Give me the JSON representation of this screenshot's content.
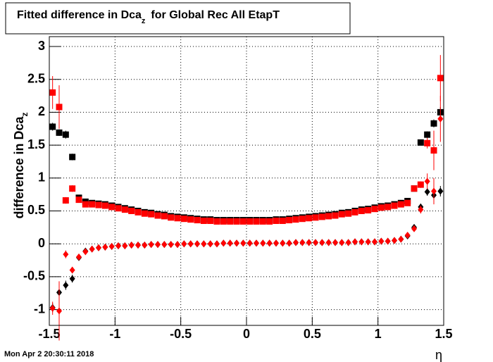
{
  "chart_data": {
    "type": "scatter",
    "title": {
      "main": "Fitted difference in Dca",
      "sub": "z",
      "rest": "for Global Rec All EtapT"
    },
    "y_label": {
      "main": "difference in Dca",
      "sub": "z"
    },
    "x_label": "η",
    "footer": "Mon Apr  2 20:30:11 2018",
    "xlim": [
      -1.5,
      1.5
    ],
    "xticks": [
      -1.5,
      -1,
      -0.5,
      0,
      0.5,
      1,
      1.5
    ],
    "ylim": [
      -1.24,
      3.15
    ],
    "yticks": [
      -1,
      -0.5,
      0,
      0.5,
      1,
      1.5,
      2,
      2.5,
      3
    ],
    "grid": true,
    "x": [
      -1.475,
      -1.425,
      -1.375,
      -1.325,
      -1.275,
      -1.225,
      -1.175,
      -1.125,
      -1.075,
      -1.025,
      -0.975,
      -0.925,
      -0.875,
      -0.825,
      -0.775,
      -0.725,
      -0.675,
      -0.625,
      -0.575,
      -0.525,
      -0.475,
      -0.425,
      -0.375,
      -0.325,
      -0.275,
      -0.225,
      -0.175,
      -0.125,
      -0.075,
      -0.025,
      0.025,
      0.075,
      0.125,
      0.175,
      0.225,
      0.275,
      0.325,
      0.375,
      0.425,
      0.475,
      0.525,
      0.575,
      0.625,
      0.675,
      0.725,
      0.775,
      0.825,
      0.875,
      0.925,
      0.975,
      1.025,
      1.075,
      1.125,
      1.175,
      1.225,
      1.275,
      1.325,
      1.375,
      1.425,
      1.475
    ],
    "series": [
      {
        "color": "#000000",
        "marker": "square",
        "values": [
          1.78,
          1.69,
          1.66,
          1.32,
          0.7,
          0.64,
          0.62,
          0.61,
          0.6,
          0.58,
          0.56,
          0.54,
          0.52,
          0.5,
          0.48,
          0.47,
          0.45,
          0.44,
          0.42,
          0.41,
          0.4,
          0.39,
          0.38,
          0.37,
          0.37,
          0.36,
          0.36,
          0.36,
          0.36,
          0.36,
          0.36,
          0.36,
          0.36,
          0.36,
          0.37,
          0.37,
          0.38,
          0.39,
          0.4,
          0.41,
          0.42,
          0.43,
          0.44,
          0.45,
          0.47,
          0.48,
          0.5,
          0.52,
          0.53,
          0.55,
          0.57,
          0.58,
          0.6,
          0.62,
          0.65,
          0.84,
          1.54,
          1.66,
          1.83,
          2.0
        ],
        "errors": [
          0.06,
          0.05,
          0.06,
          0.05,
          0.03,
          0.02,
          0.01,
          0.01,
          0.01,
          0.01,
          0.01,
          0.01,
          0.01,
          0.01,
          0.01,
          0.01,
          0.01,
          0.01,
          0.01,
          0.01,
          0.01,
          0.01,
          0.01,
          0.01,
          0.01,
          0.01,
          0.01,
          0.01,
          0.01,
          0.01,
          0.01,
          0.01,
          0.01,
          0.01,
          0.01,
          0.01,
          0.01,
          0.01,
          0.01,
          0.01,
          0.01,
          0.01,
          0.01,
          0.01,
          0.01,
          0.01,
          0.01,
          0.01,
          0.01,
          0.01,
          0.01,
          0.01,
          0.01,
          0.01,
          0.02,
          0.03,
          0.04,
          0.05,
          0.06,
          0.08
        ]
      },
      {
        "color": "#ff0000",
        "marker": "square",
        "values": [
          2.3,
          2.08,
          0.66,
          0.84,
          0.67,
          0.6,
          0.6,
          0.59,
          0.58,
          0.56,
          0.54,
          0.52,
          0.5,
          0.48,
          0.46,
          0.45,
          0.43,
          0.42,
          0.4,
          0.39,
          0.38,
          0.37,
          0.36,
          0.35,
          0.35,
          0.34,
          0.34,
          0.34,
          0.34,
          0.34,
          0.34,
          0.34,
          0.34,
          0.34,
          0.35,
          0.35,
          0.36,
          0.37,
          0.38,
          0.39,
          0.4,
          0.41,
          0.42,
          0.43,
          0.45,
          0.46,
          0.48,
          0.5,
          0.51,
          0.53,
          0.55,
          0.56,
          0.58,
          0.6,
          0.62,
          0.84,
          0.9,
          1.53,
          1.42,
          2.52
        ],
        "errors": [
          0.25,
          0.33,
          0.05,
          0.05,
          0.03,
          0.02,
          0.01,
          0.01,
          0.01,
          0.01,
          0.01,
          0.01,
          0.01,
          0.01,
          0.01,
          0.01,
          0.01,
          0.01,
          0.01,
          0.01,
          0.01,
          0.01,
          0.01,
          0.01,
          0.01,
          0.01,
          0.01,
          0.01,
          0.01,
          0.01,
          0.01,
          0.01,
          0.01,
          0.01,
          0.01,
          0.01,
          0.01,
          0.01,
          0.01,
          0.01,
          0.01,
          0.01,
          0.01,
          0.01,
          0.01,
          0.01,
          0.01,
          0.01,
          0.01,
          0.01,
          0.01,
          0.01,
          0.01,
          0.01,
          0.02,
          0.04,
          0.05,
          0.08,
          0.3,
          0.35
        ]
      },
      {
        "color": "#000000",
        "marker": "diamond",
        "values": [
          -0.97,
          -0.74,
          -0.63,
          -0.53,
          -0.21,
          -0.11,
          -0.08,
          -0.06,
          -0.05,
          -0.04,
          -0.03,
          -0.03,
          -0.02,
          -0.02,
          -0.02,
          -0.01,
          -0.01,
          -0.01,
          -0.01,
          -0.01,
          0,
          0,
          0,
          0,
          0,
          0,
          0.01,
          0.01,
          0.01,
          0.01,
          0.01,
          0.01,
          0.01,
          0.01,
          0.01,
          0.01,
          0.01,
          0.02,
          0.02,
          0.02,
          0.02,
          0.02,
          0.02,
          0.02,
          0.02,
          0.02,
          0.03,
          0.03,
          0.03,
          0.03,
          0.04,
          0.04,
          0.05,
          0.07,
          0.12,
          0.25,
          0.56,
          0.79,
          0.74,
          0.8
        ],
        "errors": [
          0.07,
          0.08,
          0.07,
          0.06,
          0.03,
          0.02,
          0.01,
          0.01,
          0.01,
          0.01,
          0.01,
          0.01,
          0.01,
          0.01,
          0.01,
          0.01,
          0.01,
          0.01,
          0.01,
          0.01,
          0.01,
          0.01,
          0.01,
          0.01,
          0.01,
          0.01,
          0.01,
          0.01,
          0.01,
          0.01,
          0.01,
          0.01,
          0.01,
          0.01,
          0.01,
          0.01,
          0.01,
          0.01,
          0.01,
          0.01,
          0.01,
          0.01,
          0.01,
          0.01,
          0.01,
          0.01,
          0.01,
          0.01,
          0.01,
          0.01,
          0.01,
          0.01,
          0.01,
          0.01,
          0.02,
          0.03,
          0.05,
          0.06,
          0.07,
          0.08
        ]
      },
      {
        "color": "#ff0000",
        "marker": "diamond",
        "values": [
          -0.98,
          -1.02,
          -0.16,
          -0.4,
          -0.2,
          -0.12,
          -0.08,
          -0.06,
          -0.05,
          -0.04,
          -0.03,
          -0.03,
          -0.02,
          -0.02,
          -0.02,
          -0.01,
          -0.01,
          -0.01,
          -0.01,
          -0.01,
          0,
          0,
          0,
          0,
          0,
          0,
          0.01,
          0.01,
          0.01,
          0.01,
          0.01,
          0.01,
          0.01,
          0.01,
          0.01,
          0.01,
          0.01,
          0.02,
          0.02,
          0.02,
          0.02,
          0.02,
          0.02,
          0.02,
          0.02,
          0.02,
          0.03,
          0.03,
          0.03,
          0.03,
          0.04,
          0.04,
          0.05,
          0.07,
          0.13,
          0.23,
          0.52,
          0.95,
          0.8,
          1.9
        ],
        "errors": [
          0.1,
          0.45,
          0.06,
          0.05,
          0.03,
          0.02,
          0.01,
          0.01,
          0.01,
          0.01,
          0.01,
          0.01,
          0.01,
          0.01,
          0.01,
          0.01,
          0.01,
          0.01,
          0.01,
          0.01,
          0.01,
          0.01,
          0.01,
          0.01,
          0.01,
          0.01,
          0.01,
          0.01,
          0.01,
          0.01,
          0.01,
          0.01,
          0.01,
          0.01,
          0.01,
          0.01,
          0.01,
          0.01,
          0.01,
          0.01,
          0.01,
          0.01,
          0.01,
          0.01,
          0.01,
          0.01,
          0.01,
          0.01,
          0.01,
          0.01,
          0.01,
          0.01,
          0.01,
          0.01,
          0.02,
          0.03,
          0.06,
          0.12,
          0.2,
          0.35
        ]
      }
    ]
  }
}
